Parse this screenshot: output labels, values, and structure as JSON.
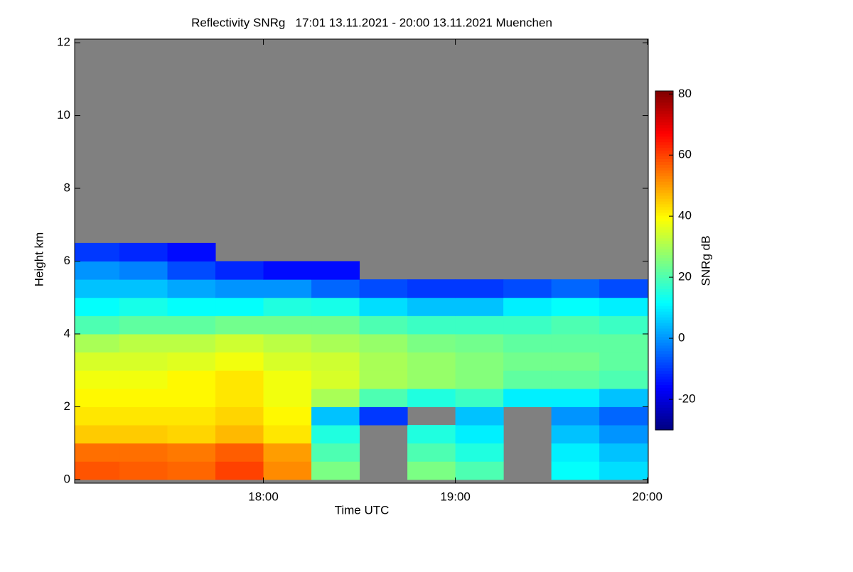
{
  "chart_data": {
    "type": "heatmap",
    "title": "Reflectivity SNRg   17:01 13.11.2021 - 20:00 13.11.2021 Muenchen",
    "x_label": "Time UTC",
    "y_label": "Height km",
    "colorbar_label": "SNRg dB",
    "x": [
      17.125,
      17.375,
      17.625,
      17.875,
      18.125,
      18.375,
      18.625,
      18.875,
      19.125,
      19.375,
      19.625,
      19.875
    ],
    "y": [
      0.25,
      0.75,
      1.25,
      1.75,
      2.25,
      2.75,
      3.25,
      3.75,
      4.25,
      4.75,
      5.25,
      5.75,
      6.25,
      6.75
    ],
    "values": [
      [
        58,
        57,
        56,
        60,
        52,
        25,
        null,
        25,
        20,
        null,
        12,
        8
      ],
      [
        55,
        55,
        54,
        57,
        50,
        20,
        null,
        20,
        15,
        null,
        10,
        5
      ],
      [
        45,
        45,
        44,
        47,
        42,
        15,
        null,
        15,
        10,
        null,
        5,
        0
      ],
      [
        42,
        42,
        42,
        44,
        40,
        5,
        -10,
        null,
        5,
        null,
        0,
        -5
      ],
      [
        40,
        40,
        40,
        42,
        38,
        30,
        20,
        15,
        18,
        10,
        10,
        5
      ],
      [
        38,
        38,
        40,
        42,
        38,
        35,
        30,
        28,
        26,
        22,
        22,
        20
      ],
      [
        35,
        35,
        36,
        38,
        35,
        34,
        30,
        28,
        26,
        24,
        24,
        22
      ],
      [
        30,
        32,
        32,
        34,
        32,
        30,
        28,
        25,
        24,
        22,
        22,
        22
      ],
      [
        20,
        22,
        22,
        24,
        24,
        24,
        20,
        18,
        18,
        18,
        20,
        18
      ],
      [
        12,
        14,
        12,
        12,
        15,
        14,
        8,
        5,
        5,
        10,
        12,
        10
      ],
      [
        5,
        5,
        2,
        0,
        0,
        -5,
        -8,
        -10,
        -10,
        -8,
        -5,
        -8
      ],
      [
        0,
        -2,
        -8,
        -12,
        -15,
        -15,
        null,
        null,
        null,
        null,
        null,
        null
      ],
      [
        -10,
        -12,
        -15,
        null,
        null,
        null,
        null,
        null,
        null,
        null,
        null,
        null
      ],
      [
        null,
        null,
        null,
        null,
        null,
        null,
        null,
        null,
        null,
        null,
        null,
        null
      ]
    ],
    "cell_width": 0.25,
    "cell_height": 0.5,
    "xlim": [
      17.0167,
      20.005
    ],
    "xticks": [
      {
        "value": 18,
        "label": "18:00"
      },
      {
        "value": 19,
        "label": "19:00"
      },
      {
        "value": 20,
        "label": "20:00"
      }
    ],
    "ylim": [
      -0.1,
      12.1
    ],
    "yticks": [
      0,
      2,
      4,
      6,
      8,
      10,
      12
    ],
    "clim": [
      -30,
      81
    ],
    "cticks": [
      -20,
      0,
      20,
      40,
      60,
      80
    ],
    "colormap": "jet",
    "missing_color": "#808080"
  }
}
